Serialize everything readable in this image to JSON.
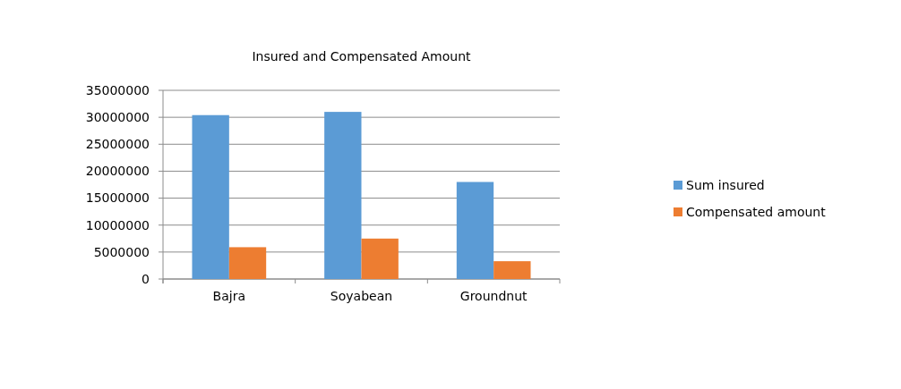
{
  "chart_data": {
    "type": "bar",
    "title": "Insured and Compensated  Amount",
    "categories": [
      "Bajra",
      "Soyabean",
      "Groundnut"
    ],
    "series": [
      {
        "name": "Sum insured",
        "color": "#5b9bd5",
        "values": [
          30400000,
          31000000,
          18000000
        ]
      },
      {
        "name": "Compensated amount",
        "color": "#ed7d31",
        "values": [
          5900000,
          7500000,
          3300000
        ]
      }
    ],
    "ylim": [
      0,
      35000000
    ],
    "yticks": [
      0,
      5000000,
      10000000,
      15000000,
      20000000,
      25000000,
      30000000,
      35000000
    ],
    "grid": "y",
    "legend": "right"
  }
}
